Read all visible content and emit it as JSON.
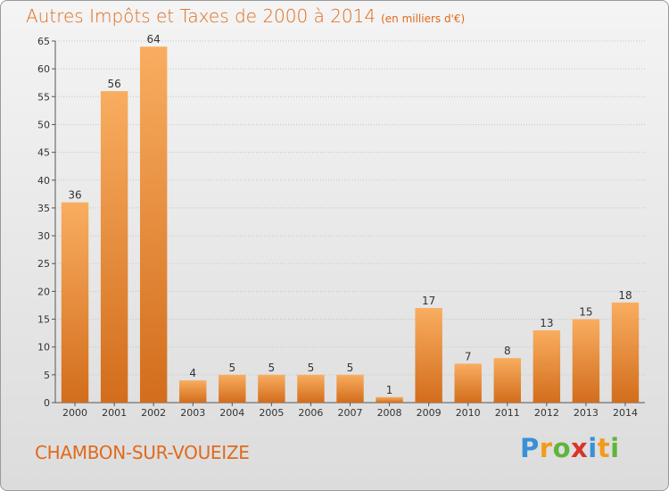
{
  "header": {
    "title": "Autres Impôts et Taxes de 2000 à 2014",
    "subtitle": "(en milliers d'€)"
  },
  "footer": {
    "commune": "CHAMBON-SUR-VOUEIZE",
    "logo_text": "Proxiti"
  },
  "colors": {
    "accent": "#e06a1c",
    "bar_light": "#f8aa5c",
    "bar_dark": "#d4701e",
    "grid": "#c8c8c8"
  },
  "chart_data": {
    "type": "bar",
    "title": "Autres Impôts et Taxes de 2000 à 2014",
    "subtitle": "(en milliers d'€)",
    "xlabel": "",
    "ylabel": "",
    "categories": [
      "2000",
      "2001",
      "2002",
      "2003",
      "2004",
      "2005",
      "2006",
      "2007",
      "2008",
      "2009",
      "2010",
      "2011",
      "2012",
      "2013",
      "2014"
    ],
    "values": [
      36,
      56,
      64,
      4,
      5,
      5,
      5,
      5,
      1,
      17,
      7,
      8,
      13,
      15,
      18
    ],
    "data_labels": [
      "36",
      "56",
      "64",
      "4",
      "5",
      "5",
      "5",
      "5",
      "1",
      "17",
      "7",
      "8",
      "13",
      "15",
      "18"
    ],
    "ylim": [
      0,
      65
    ],
    "yticks": [
      0,
      5,
      10,
      15,
      20,
      25,
      30,
      35,
      40,
      45,
      50,
      55,
      60,
      65
    ],
    "grid": "horizontal dotted",
    "legend": "none"
  }
}
